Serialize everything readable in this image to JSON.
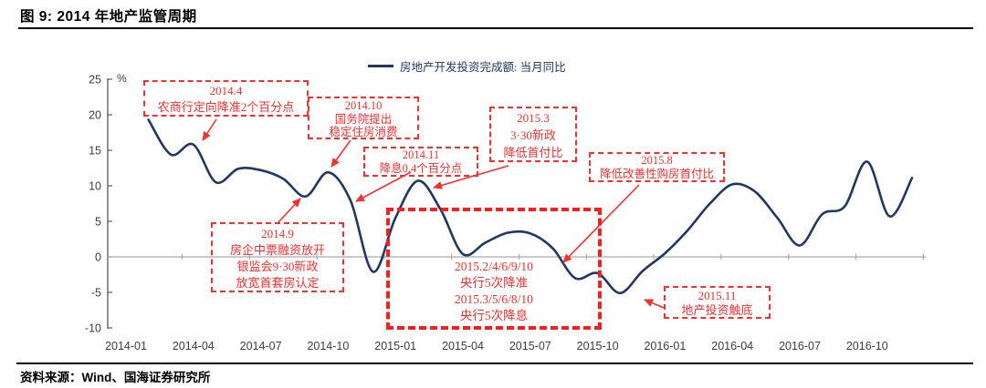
{
  "header": {
    "title": "图 9: 2014 年地产监管周期"
  },
  "footer": {
    "source": "资料来源：Wind、国海证券研究所"
  },
  "chart_data": {
    "type": "line",
    "title": "2014 年地产监管周期",
    "legend_label": "房地产开发投资完成额: 当月同比",
    "legend_position": "top-center",
    "unit": "%",
    "grid": false,
    "ylim": [
      -10,
      25
    ],
    "y_ticks": [
      25,
      20,
      15,
      10,
      5,
      0,
      -5,
      -10
    ],
    "x_tick_labels": [
      "2014-01",
      "2014-04",
      "2014-07",
      "2014-10",
      "2015-01",
      "2015-04",
      "2015-07",
      "2015-10",
      "2016-01",
      "2016-04",
      "2016-07",
      "2016-10"
    ],
    "x": [
      "2014-02",
      "2014-03",
      "2014-04",
      "2014-05",
      "2014-06",
      "2014-07",
      "2014-08",
      "2014-09",
      "2014-10",
      "2014-11",
      "2014-12",
      "2015-01",
      "2015-02",
      "2015-03",
      "2015-04",
      "2015-05",
      "2015-06",
      "2015-07",
      "2015-08",
      "2015-09",
      "2015-10",
      "2015-11",
      "2015-12",
      "2016-01",
      "2016-02",
      "2016-03",
      "2016-04",
      "2016-05",
      "2016-06",
      "2016-07",
      "2016-08",
      "2016-09",
      "2016-10",
      "2016-11",
      "2016-12"
    ],
    "series": [
      {
        "name": "房地产开发投资完成额: 当月同比",
        "color": "#1f3864",
        "values": [
          19.3,
          14.4,
          15.8,
          10.5,
          12.4,
          12.2,
          11.0,
          8.5,
          11.9,
          7.9,
          -2.1,
          5.5,
          10.7,
          6.7,
          0.4,
          2.0,
          3.4,
          3.3,
          1.2,
          -3.0,
          -2.3,
          -5.1,
          -2.0,
          0.5,
          3.7,
          7.5,
          10.2,
          9.2,
          5.5,
          1.6,
          6.0,
          7.1,
          13.4,
          5.7,
          11.1
        ]
      }
    ],
    "annotations": [
      {
        "lines": [
          "2014.4",
          "农商行定向降准2个百分点"
        ]
      },
      {
        "lines": [
          "2014.10",
          "国务院提出",
          "稳定住房消费"
        ]
      },
      {
        "lines": [
          "2014.11",
          "降息0.4个百分点"
        ]
      },
      {
        "lines": [
          "2015.3",
          "3·30新政",
          "降低首付比"
        ]
      },
      {
        "lines": [
          "2015.8",
          "降低改善性购房首付比"
        ]
      },
      {
        "lines": [
          "2014.9",
          "房企中票融资放开",
          "银监会9·30新政",
          "放宽首套房认定"
        ]
      },
      {
        "lines": [
          "2015.2/4/6/9/10",
          "央行5次降准",
          "2015.3/5/6/8/10",
          "央行5次降息"
        ]
      },
      {
        "lines": [
          "2015.11",
          "地产投资触底"
        ]
      }
    ],
    "colors": {
      "line": "#1f3864",
      "annotation_red": "#f43030",
      "highlight_box_red": "#fa1e1e",
      "axis": "#595959",
      "zero_line": "#ababab",
      "tick_label": "#3d3d3d"
    }
  }
}
